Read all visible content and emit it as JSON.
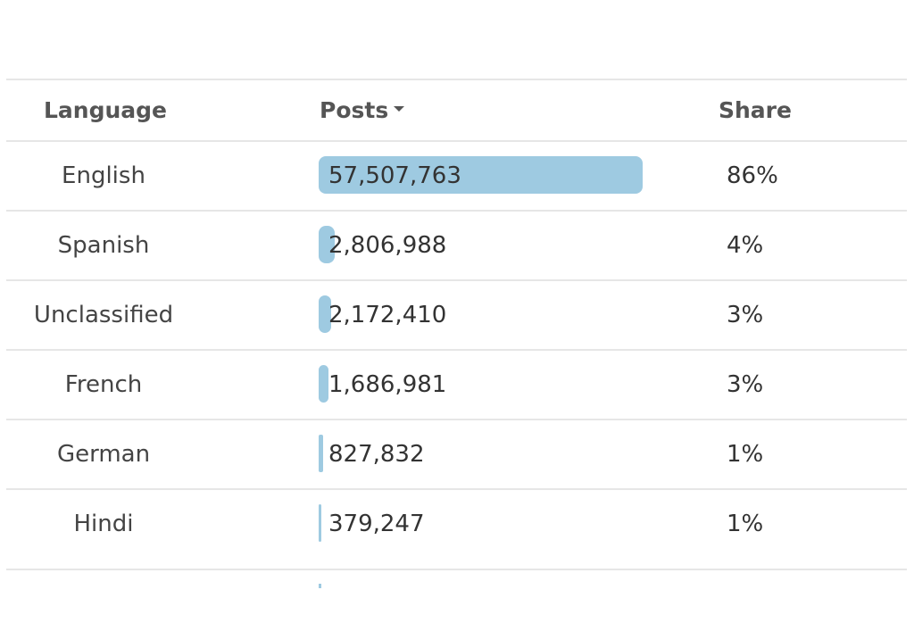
{
  "table": {
    "headers": {
      "language": "Language",
      "posts": "Posts",
      "share": "Share"
    },
    "sort_icon": "caret-down-icon",
    "bar_color": "#9ecae1",
    "rows": [
      {
        "language": "English",
        "posts": "57,507,763",
        "share": "86%",
        "posts_value": 57507763
      },
      {
        "language": "Spanish",
        "posts": "2,806,988",
        "share": "4%",
        "posts_value": 2806988
      },
      {
        "language": "Unclassified",
        "posts": "2,172,410",
        "share": "3%",
        "posts_value": 2172410
      },
      {
        "language": "French",
        "posts": "1,686,981",
        "share": "3%",
        "posts_value": 1686981
      },
      {
        "language": "German",
        "posts": "827,832",
        "share": "1%",
        "posts_value": 827832
      },
      {
        "language": "Hindi",
        "posts": "379,247",
        "share": "1%",
        "posts_value": 379247
      }
    ]
  }
}
